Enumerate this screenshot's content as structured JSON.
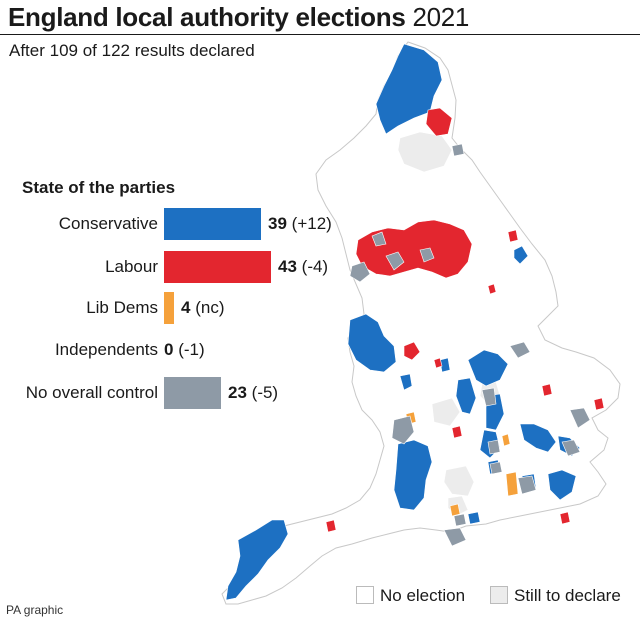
{
  "title": {
    "bold": "England local authority elections",
    "year": "2021"
  },
  "subtitle": "After 109 of 122 results declared",
  "parties": {
    "heading": "State of the parties",
    "rows": [
      {
        "name": "Conservative",
        "value": "39",
        "change": "(+12)",
        "color": "#1d70c2"
      },
      {
        "name": "Labour",
        "value": "43",
        "change": "(-4)",
        "color": "#e3262f"
      },
      {
        "name": "Lib Dems",
        "value": "4",
        "change": "(nc)",
        "color": "#f5a13b"
      },
      {
        "name": "Independents",
        "value": "0",
        "change": "(-1)",
        "color": "#9b9b9b"
      },
      {
        "name": "No overall control",
        "value": "23",
        "change": "(-5)",
        "color": "#8e9aa6"
      }
    ]
  },
  "legend": {
    "no_election": {
      "label": "No election",
      "color": "#ffffff"
    },
    "still_to_declare": {
      "label": "Still to declare",
      "color": "#ececec"
    }
  },
  "credit": "PA graphic"
}
